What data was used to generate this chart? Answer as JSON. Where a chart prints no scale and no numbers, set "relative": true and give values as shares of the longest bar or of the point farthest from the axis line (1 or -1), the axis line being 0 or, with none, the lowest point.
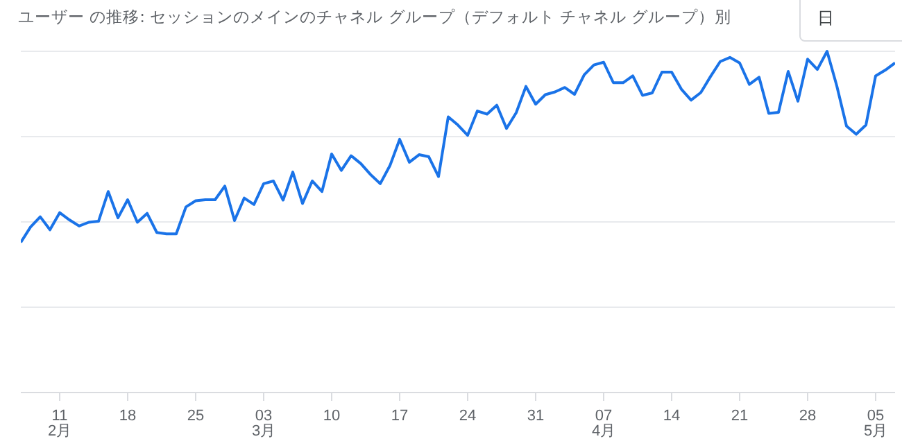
{
  "chart_data": {
    "type": "line",
    "title": "ユーザー の推移: セッションのメインのチャネル グループ（デフォルト チャネル グループ）別",
    "annotations": [
      "日"
    ],
    "relative": true,
    "grid": "y",
    "marker": "none",
    "color": "#1a73e8",
    "x": [
      "--02-07",
      "--02-08",
      "--02-09",
      "--02-10",
      "--02-11",
      "--02-12",
      "--02-13",
      "--02-14",
      "--02-15",
      "--02-16",
      "--02-17",
      "--02-18",
      "--02-19",
      "--02-20",
      "--02-21",
      "--02-22",
      "--02-23",
      "--02-24",
      "--02-25",
      "--02-26",
      "--02-27",
      "--02-28",
      "--02-29",
      "--03-01",
      "--03-02",
      "--03-03",
      "--03-04",
      "--03-05",
      "--03-06",
      "--03-07",
      "--03-08",
      "--03-09",
      "--03-10",
      "--03-11",
      "--03-12",
      "--03-13",
      "--03-14",
      "--03-15",
      "--03-16",
      "--03-17",
      "--03-18",
      "--03-19",
      "--03-20",
      "--03-21",
      "--03-22",
      "--03-23",
      "--03-24",
      "--03-25",
      "--03-26",
      "--03-27",
      "--03-28",
      "--03-29",
      "--03-30",
      "--03-31",
      "--04-01",
      "--04-02",
      "--04-03",
      "--04-04",
      "--04-05",
      "--04-06",
      "--04-07",
      "--04-08",
      "--04-09",
      "--04-10",
      "--04-11",
      "--04-12",
      "--04-13",
      "--04-14",
      "--04-15",
      "--04-16",
      "--04-17",
      "--04-18",
      "--04-19",
      "--04-20",
      "--04-21",
      "--04-22",
      "--04-23",
      "--04-24",
      "--04-25",
      "--04-26",
      "--04-27",
      "--04-28",
      "--04-29",
      "--04-30",
      "--05-01",
      "--05-02",
      "--05-03",
      "--05-04",
      "--05-05",
      "--05-06",
      "--05-07"
    ],
    "values": [
      0.44,
      0.485,
      0.515,
      0.477,
      0.527,
      0.506,
      0.488,
      0.499,
      0.502,
      0.589,
      0.512,
      0.565,
      0.499,
      0.525,
      0.469,
      0.465,
      0.465,
      0.544,
      0.562,
      0.565,
      0.565,
      0.605,
      0.504,
      0.57,
      0.551,
      0.612,
      0.62,
      0.564,
      0.646,
      0.554,
      0.62,
      0.589,
      0.699,
      0.651,
      0.694,
      0.671,
      0.639,
      0.612,
      0.665,
      0.742,
      0.675,
      0.697,
      0.691,
      0.633,
      0.808,
      0.784,
      0.754,
      0.825,
      0.816,
      0.842,
      0.774,
      0.82,
      0.897,
      0.845,
      0.873,
      0.881,
      0.894,
      0.874,
      0.931,
      0.96,
      0.968,
      0.908,
      0.908,
      0.928,
      0.871,
      0.878,
      0.939,
      0.939,
      0.889,
      0.857,
      0.879,
      0.926,
      0.97,
      0.982,
      0.966,
      0.903,
      0.924,
      0.818,
      0.821,
      0.941,
      0.854,
      0.977,
      0.947,
      1,
      0.899,
      0.781,
      0.757,
      0.784,
      0.928,
      0.945,
      0.966
    ],
    "xlim": [
      "--02-07",
      "--05-07"
    ],
    "xticks": [
      {
        "value": "--02-11",
        "label": "11\n2月"
      },
      {
        "value": "--02-18",
        "label": "18"
      },
      {
        "value": "--02-25",
        "label": "25"
      },
      {
        "value": "--03-03",
        "label": "03\n3月"
      },
      {
        "value": "--03-10",
        "label": "10"
      },
      {
        "value": "--03-17",
        "label": "17"
      },
      {
        "value": "--03-24",
        "label": "24"
      },
      {
        "value": "--03-31",
        "label": "31"
      },
      {
        "value": "--04-07",
        "label": "07\n4月"
      },
      {
        "value": "--04-14",
        "label": "14"
      },
      {
        "value": "--04-21",
        "label": "21"
      },
      {
        "value": "--04-28",
        "label": "28"
      },
      {
        "value": "--05-05",
        "label": "05\n5月"
      }
    ]
  }
}
